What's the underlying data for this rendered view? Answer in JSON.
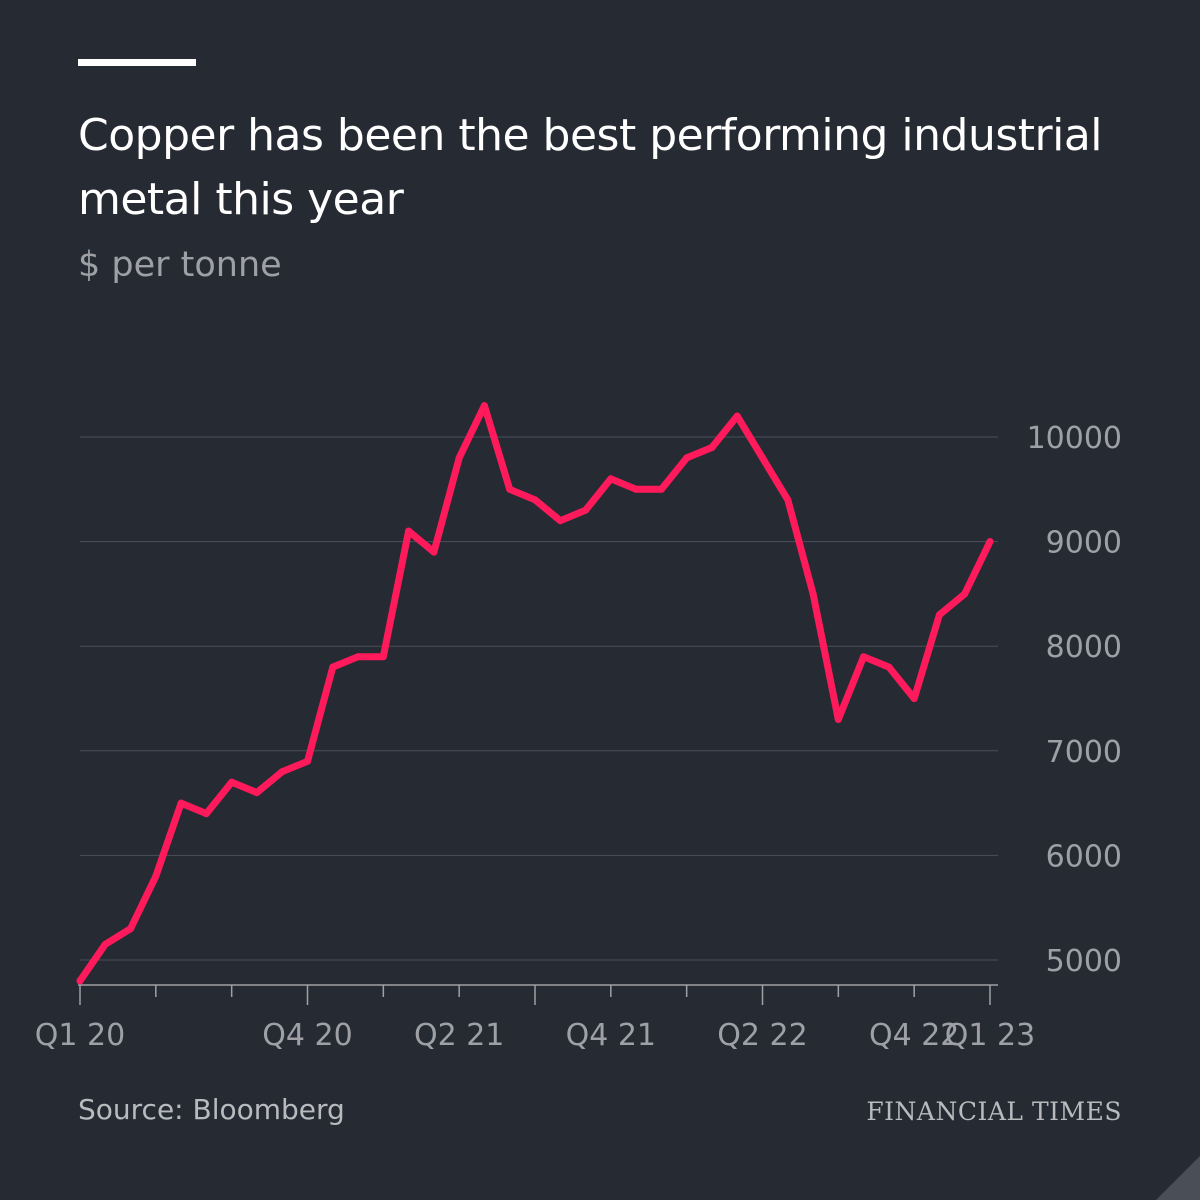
{
  "title": "Copper has been the best performing industrial metal this year",
  "subtitle": "$ per tonne",
  "source": "Source: Bloomberg",
  "brand": "FINANCIAL TIMES",
  "colors": {
    "background": "#262a33",
    "line": "#ff1a5c",
    "grid": "#4b4f58",
    "axis_text": "#9ea0a5"
  },
  "chart_data": {
    "type": "line",
    "title": "Copper has been the best performing industrial metal this year",
    "subtitle": "$ per tonne",
    "xlabel": "",
    "ylabel": "",
    "x_tick_labels": [
      "Q1 20",
      "Q4 20",
      "Q2 21",
      "Q4 21",
      "Q2 22",
      "Q4 22",
      "Q1 23"
    ],
    "y_ticks": [
      5000,
      6000,
      7000,
      8000,
      9000,
      10000
    ],
    "ylim": [
      4800,
      10700
    ],
    "xlim": [
      "2020-01",
      "2023-01"
    ],
    "grid": true,
    "y_axis_side": "right",
    "series": [
      {
        "color": "#ff1a5c",
        "x": [
          "2020-01",
          "2020-02",
          "2020-03",
          "2020-04",
          "2020-05",
          "2020-06",
          "2020-07",
          "2020-08",
          "2020-09",
          "2020-10",
          "2020-11",
          "2020-12",
          "2021-01",
          "2021-02",
          "2021-03",
          "2021-04",
          "2021-05",
          "2021-06",
          "2021-07",
          "2021-08",
          "2021-09",
          "2021-10",
          "2021-11",
          "2021-12",
          "2022-01",
          "2022-02",
          "2022-03",
          "2022-04",
          "2022-05",
          "2022-06",
          "2022-07",
          "2022-08",
          "2022-09",
          "2022-10",
          "2022-11",
          "2022-12",
          "2023-01"
        ],
        "y": [
          4800,
          5150,
          5300,
          5800,
          6500,
          6400,
          6700,
          6600,
          6800,
          6900,
          7800,
          7900,
          7900,
          9100,
          8900,
          9800,
          10300,
          9500,
          9400,
          9200,
          9300,
          9600,
          9500,
          9500,
          9800,
          9900,
          10200,
          9800,
          9400,
          8500,
          7300,
          7900,
          7800,
          7500,
          8300,
          8500,
          9000
        ]
      }
    ]
  }
}
